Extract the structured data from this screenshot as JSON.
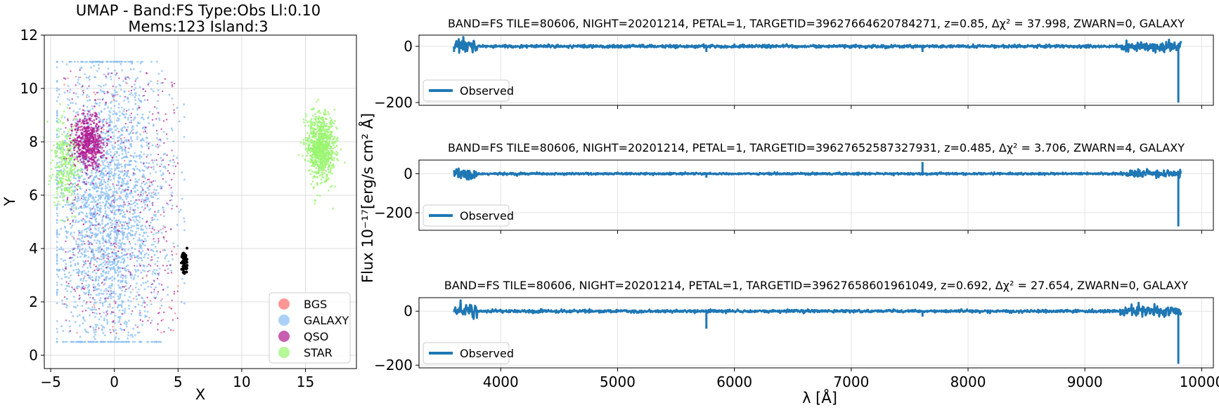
{
  "colors": {
    "bgs": "#ff6b6b",
    "galaxy": "#87bdf5",
    "qso": "#b01890",
    "star": "#98f56e",
    "highlight": "#000000",
    "spectrum": "#1f77b4"
  },
  "chart_data": [
    {
      "type": "scatter",
      "title_line1": "UMAP  -  Band:FS Type:Obs Ll:0.10",
      "title_line2": "Mems:123 Island:3",
      "xlabel": "X",
      "ylabel": "Y",
      "xlim": [
        -5.5,
        19
      ],
      "ylim": [
        -0.5,
        12
      ],
      "xticks": [
        -5,
        0,
        5,
        10,
        15
      ],
      "yticks": [
        0,
        2,
        4,
        6,
        8,
        10,
        12
      ],
      "grid": true,
      "legend_position": "bottom-right",
      "series": [
        {
          "name": "BGS",
          "color": "#ff6b6b"
        },
        {
          "name": "GALAXY",
          "color": "#87bdf5"
        },
        {
          "name": "QSO",
          "color": "#b01890"
        },
        {
          "name": "STAR",
          "color": "#98f56e"
        }
      ],
      "clusters": [
        {
          "label": "GALAXY",
          "cx": -0.5,
          "cy": 5.5,
          "sx": 2.2,
          "sy": 2.8
        },
        {
          "label": "STAR",
          "cx": 16.2,
          "cy": 7.8,
          "sx": 0.55,
          "sy": 0.6
        },
        {
          "label": "STAR",
          "cx": -3.8,
          "cy": 7.2,
          "sx": 0.55,
          "sy": 0.8
        },
        {
          "label": "QSO",
          "cx": -2.0,
          "cy": 8.0,
          "sx": 0.6,
          "sy": 0.5
        },
        {
          "label": "highlight",
          "cx": 5.5,
          "cy": 3.5,
          "sx": 0.12,
          "sy": 0.22
        }
      ]
    },
    {
      "type": "line",
      "title": "BAND=FS TILE=80606, NIGHT=20201214, PETAL=1, TARGETID=39627664620784271, z=0.85, Δχ² = 37.998, ZWARN=0, GALAXY",
      "xlim": [
        3300,
        10100
      ],
      "ylim": [
        -210,
        40
      ],
      "yticks": [
        0,
        -200
      ],
      "xticks": [
        4000,
        5000,
        6000,
        7000,
        8000,
        9000,
        10000
      ],
      "legend": "Observed",
      "x_range": [
        3600,
        9824
      ],
      "spikes": [
        {
          "x": 9800,
          "y": -200
        },
        {
          "x": 5760,
          "y": -20
        },
        {
          "x": 7610,
          "y": -20
        },
        {
          "x": 3600,
          "y": -20
        }
      ]
    },
    {
      "type": "line",
      "title": "BAND=FS TILE=80606, NIGHT=20201214, PETAL=1, TARGETID=39627652587327931, z=0.485, Δχ² = 3.706, ZWARN=4, GALAXY",
      "xlim": [
        3300,
        10100
      ],
      "ylim": [
        -290,
        70
      ],
      "yticks": [
        0,
        -200
      ],
      "xticks": [
        4000,
        5000,
        6000,
        7000,
        8000,
        9000,
        10000
      ],
      "legend": "Observed",
      "x_range": [
        3600,
        9824
      ],
      "spikes": [
        {
          "x": 9800,
          "y": -270
        },
        {
          "x": 7610,
          "y": 60
        },
        {
          "x": 5760,
          "y": -20
        }
      ]
    },
    {
      "type": "line",
      "title": "BAND=FS TILE=80606, NIGHT=20201214, PETAL=1, TARGETID=39627658601961049, z=0.692, Δχ² = 27.654, ZWARN=0, GALAXY",
      "xlabel": "λ [Å]",
      "shared_ylabel": "Flux 10⁻¹⁷[erg/s cm² Å]",
      "xlim": [
        3300,
        10100
      ],
      "ylim": [
        -210,
        50
      ],
      "yticks": [
        0,
        -200
      ],
      "xticks": [
        4000,
        5000,
        6000,
        7000,
        8000,
        9000,
        10000
      ],
      "legend": "Observed",
      "x_range": [
        3600,
        9824
      ],
      "spikes": [
        {
          "x": 9800,
          "y": -195
        },
        {
          "x": 5760,
          "y": -65
        },
        {
          "x": 7610,
          "y": -20
        }
      ]
    }
  ]
}
